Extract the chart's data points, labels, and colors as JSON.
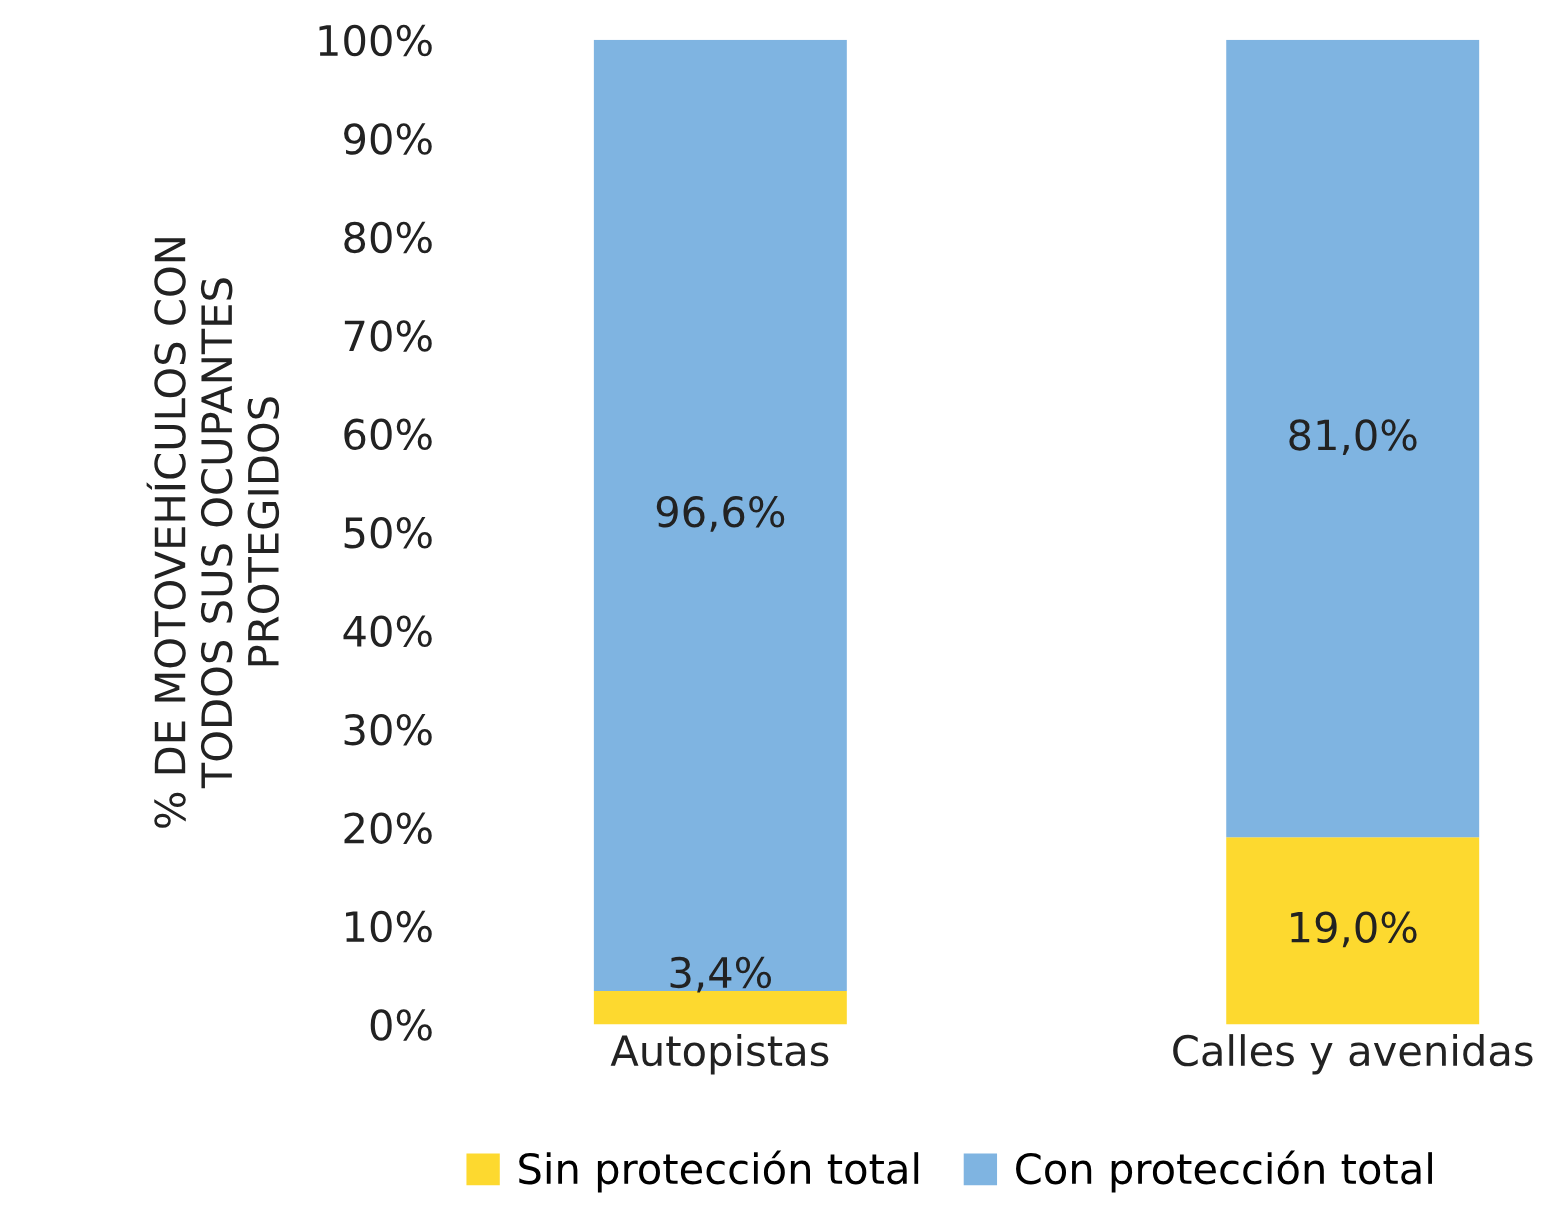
{
  "chart_data": {
    "type": "bar",
    "stacked": true,
    "ylabel": "% DE MOTOVEHÍCULOS CON\nTODOS SUS OCUPANTES\nPROTEGIDOS",
    "categories": [
      "Autopistas",
      "Calles y avenidas"
    ],
    "series": [
      {
        "name": "Sin protección total",
        "color": "#fdd92f",
        "values": [
          3.4,
          19.0
        ],
        "value_labels": [
          "3,4%",
          "19,0%"
        ]
      },
      {
        "name": "Con protección total",
        "color": "#7fb4e1",
        "values": [
          96.6,
          81.0
        ],
        "value_labels": [
          "96,6%",
          "81,0%"
        ]
      }
    ],
    "ylim": [
      0,
      100
    ],
    "yticks": [
      {
        "value": 0,
        "label": "0%"
      },
      {
        "value": 10,
        "label": "10%"
      },
      {
        "value": 20,
        "label": "20%"
      },
      {
        "value": 30,
        "label": "30%"
      },
      {
        "value": 40,
        "label": "40%"
      },
      {
        "value": 50,
        "label": "50%"
      },
      {
        "value": 60,
        "label": "60%"
      },
      {
        "value": 70,
        "label": "70%"
      },
      {
        "value": 80,
        "label": "80%"
      },
      {
        "value": 90,
        "label": "90%"
      },
      {
        "value": 100,
        "label": "100%"
      }
    ],
    "grid": false,
    "legend": "bottom"
  }
}
